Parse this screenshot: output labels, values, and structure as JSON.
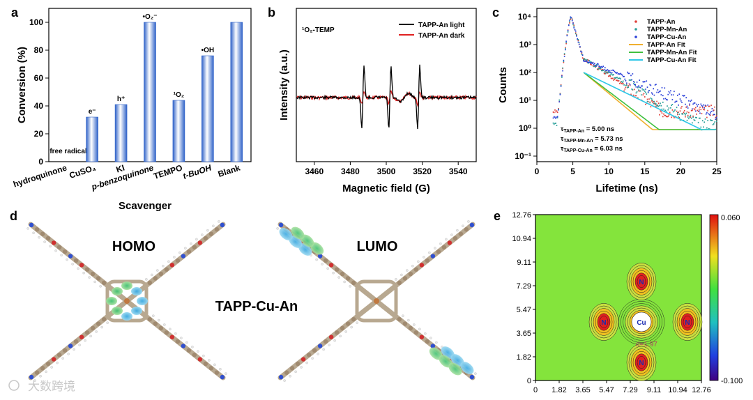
{
  "panel_labels": {
    "a": "a",
    "b": "b",
    "c": "c",
    "d": "d",
    "e": "e"
  },
  "chart_data": [
    {
      "type": "bar",
      "panel": "a",
      "categories": [
        "hydroquinone",
        "CuSO₄",
        "KI",
        "p-benzoquinone",
        "TEMPO",
        "t-BuOH",
        "Blank"
      ],
      "values": [
        0,
        32,
        41,
        100,
        44,
        76,
        100
      ],
      "bar_labels": [
        "free radical",
        "e⁻",
        "h⁺",
        "•O₂⁻",
        "¹O₂",
        "•OH",
        ""
      ],
      "xlabel": "Scavenger",
      "ylabel": "Conversion (%)",
      "ylim": [
        0,
        110
      ],
      "yticks": [
        0,
        20,
        40,
        60,
        80,
        100
      ],
      "bar_color": "#5a8fe6"
    },
    {
      "type": "line",
      "panel": "b",
      "annotation": "¹O₂-TEMP",
      "xlabel": "Magnetic field (G)",
      "ylabel": "Intensity (a.u.)",
      "xlim": [
        3450,
        3550
      ],
      "xticks": [
        3460,
        3480,
        3500,
        3520,
        3540
      ],
      "peak_positions": [
        3487,
        3502,
        3518
      ],
      "series": [
        {
          "name": "TAPP-An light",
          "color": "#000000",
          "relative_amplitude": 1.0
        },
        {
          "name": "TAPP-An dark",
          "color": "#e02020",
          "relative_amplitude": 0.22
        }
      ]
    },
    {
      "type": "scatter",
      "panel": "c",
      "xlabel": "Lifetime (ns)",
      "ylabel": "Counts",
      "xlim": [
        0,
        25
      ],
      "xticks": [
        0,
        5,
        10,
        15,
        20,
        25
      ],
      "yscale": "log",
      "yticks": [
        "10⁻¹",
        "10⁰",
        "10¹",
        "10²",
        "10³",
        "10⁴"
      ],
      "series": [
        {
          "name": "TAPP-An",
          "color": "#e0403a",
          "kind": "points"
        },
        {
          "name": "TAPP-Mn-An",
          "color": "#2aa09a",
          "kind": "points"
        },
        {
          "name": "TAPP-Cu-An",
          "color": "#2a40d8",
          "kind": "points"
        },
        {
          "name": "TAPP-An Fit",
          "color": "#f0b030",
          "kind": "line"
        },
        {
          "name": "TAPP-Mn-An Fit",
          "color": "#40c040",
          "kind": "line"
        },
        {
          "name": "TAPP-Cu-An Fit",
          "color": "#30c8e8",
          "kind": "line"
        }
      ],
      "lifetimes": [
        {
          "sym": "τ",
          "sub": "TAPP-An",
          "value": " = 5.00 ns"
        },
        {
          "sym": "τ",
          "sub": "TAPP-Mn-An",
          "value": " = 5.73 ns"
        },
        {
          "sym": "τ",
          "sub": "TAPP-Cu-An",
          "value": " = 6.03 ns"
        }
      ]
    },
    {
      "type": "heatmap",
      "panel": "e",
      "xticks": [
        "0",
        "1.82",
        "3.65",
        "5.47",
        "7.29",
        "9.11",
        "10.94",
        "12.76"
      ],
      "yticks": [
        "0",
        "1.82",
        "3.65",
        "5.47",
        "7.29",
        "9.11",
        "10.94",
        "12.76"
      ],
      "colorbar": {
        "max": "0.060",
        "min": "-0.100"
      },
      "atom_labels": [
        "Cu",
        "N",
        "N",
        "N",
        "N"
      ],
      "annotation": "d=1.97"
    }
  ],
  "panel_d": {
    "homo_label": "HOMO",
    "lumo_label": "LUMO",
    "molecule_label": "TAPP-Cu-An"
  },
  "watermark": "大数跨境"
}
